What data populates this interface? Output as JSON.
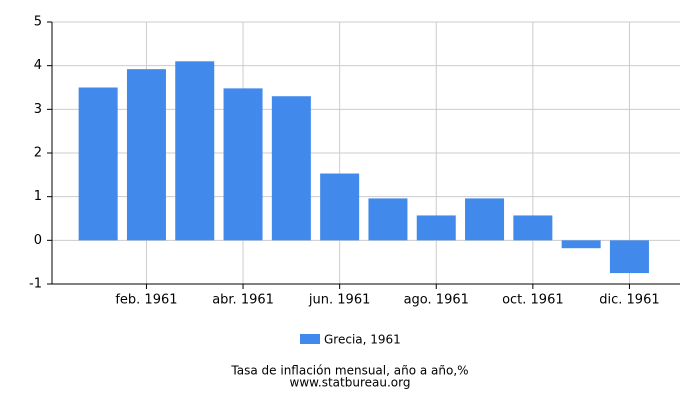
{
  "chart_data": {
    "type": "bar",
    "title": "Tasa de inflación mensual, año a año,%",
    "source": "www.statbureau.org",
    "categories": [
      null,
      "feb. 1961",
      null,
      "abr. 1961",
      null,
      "jun. 1961",
      null,
      "ago. 1961",
      null,
      "oct. 1961",
      null,
      "dic. 1961"
    ],
    "series": [
      {
        "name": "Grecia, 1961",
        "color": "#4189ea",
        "values": [
          3.5,
          3.92,
          4.1,
          3.48,
          3.3,
          1.53,
          0.96,
          0.57,
          0.96,
          0.57,
          -0.18,
          -0.75
        ]
      }
    ],
    "ylim": [
      -1,
      5
    ],
    "yticks": [
      -1,
      0,
      1,
      2,
      3,
      4,
      5
    ],
    "grid": true
  }
}
